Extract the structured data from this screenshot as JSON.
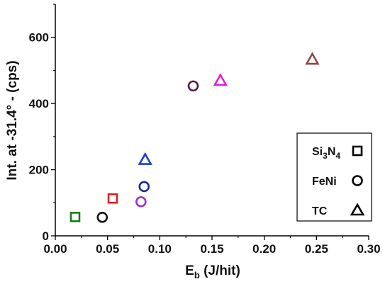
{
  "chart_data": {
    "type": "scatter",
    "xlabel": "E",
    "xlabel_sub": "b",
    "xlabel_units": " (J/hit)",
    "ylabel": "Int. at -31.4° - (cps)",
    "xlim": [
      0,
      0.3
    ],
    "ylim": [
      0,
      700
    ],
    "xticks": [
      0.0,
      0.05,
      0.1,
      0.15,
      0.2,
      0.25,
      0.3
    ],
    "xtick_labels": [
      "0.00",
      "0.05",
      "0.10",
      "0.15",
      "0.20",
      "0.25",
      "0.30"
    ],
    "yticks": [
      0,
      200,
      400,
      600
    ],
    "ytick_labels": [
      "0",
      "200",
      "400",
      "600"
    ],
    "grid": false,
    "legend_position": "bottom-right",
    "legend": [
      {
        "key": "si3n4",
        "parts": [
          [
            "Si",
            ""
          ],
          [
            "3",
            "sub"
          ],
          [
            "N",
            ""
          ],
          [
            "4",
            "sub"
          ]
        ],
        "marker": "square"
      },
      {
        "key": "feni",
        "parts": [
          [
            "FeNi",
            ""
          ]
        ],
        "marker": "circle"
      },
      {
        "key": "tc",
        "parts": [
          [
            "TC",
            ""
          ]
        ],
        "marker": "triangle"
      }
    ],
    "series": [
      {
        "marker": "square",
        "points": [
          {
            "x": 0.019,
            "y": 57,
            "color": "#1a7a1a"
          },
          {
            "x": 0.055,
            "y": 113,
            "color": "#e02020"
          }
        ]
      },
      {
        "marker": "circle",
        "points": [
          {
            "x": 0.045,
            "y": 56,
            "color": "#111111"
          },
          {
            "x": 0.082,
            "y": 103,
            "color": "#9933cc"
          },
          {
            "x": 0.085,
            "y": 149,
            "color": "#1f2a8f"
          },
          {
            "x": 0.132,
            "y": 453,
            "color": "#5c1a4a"
          }
        ]
      },
      {
        "marker": "triangle",
        "points": [
          {
            "x": 0.086,
            "y": 230,
            "color": "#1f3fd0"
          },
          {
            "x": 0.158,
            "y": 469,
            "color": "#e020d8"
          },
          {
            "x": 0.246,
            "y": 533,
            "color": "#8a4848"
          }
        ]
      }
    ]
  }
}
